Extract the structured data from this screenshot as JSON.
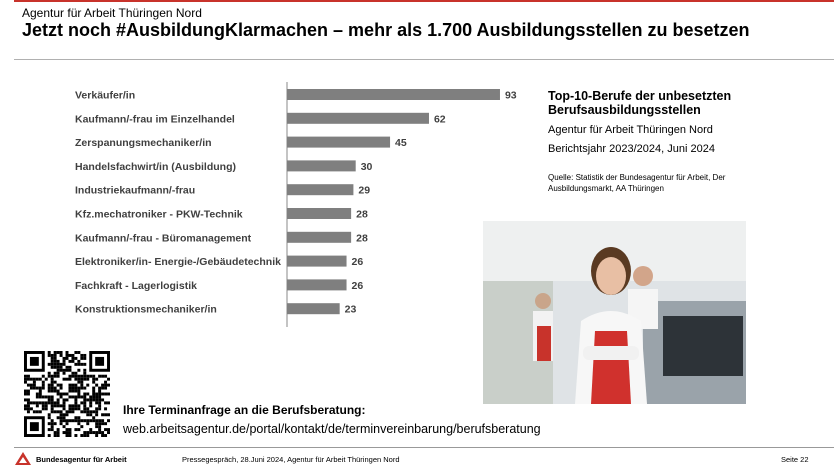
{
  "header": {
    "agency": "Agentur für Arbeit Thüringen Nord",
    "title": "Jetzt noch #AusbildungKlarmachen – mehr als 1.700 Ausbildungsstellen zu besetzen"
  },
  "chart_data": {
    "type": "bar",
    "orientation": "horizontal",
    "categories": [
      "Verkäufer/in",
      "Kaufmann/-frau im Einzelhandel",
      "Zerspanungsmechaniker/in",
      "Handelsfachwirt/in (Ausbildung)",
      "Industriekaufmann/-frau",
      "Kfz.mechatroniker - PKW-Technik",
      "Kaufmann/-frau - Büromanagement",
      "Elektroniker/in- Energie-/Gebäudetechnik",
      "Fachkraft - Lagerlogistik",
      "Konstruktionsmechaniker/in"
    ],
    "values": [
      93,
      62,
      45,
      30,
      29,
      28,
      28,
      26,
      26,
      23
    ],
    "bar_color": "#7f7f7f",
    "grid": false
  },
  "info": {
    "heading": "Top-10-Berufe der unbesetzten Berufsausbildungsstellen",
    "line1": "Agentur für Arbeit Thüringen Nord",
    "line2": "Berichtsjahr 2023/2024, Juni 2024",
    "source": "Quelle: Statistik der Bundesagentur für Arbeit, Der Ausbildungsmarkt, AA Thüringen"
  },
  "cta": {
    "heading": "Ihre Terminanfrage an die Berufsberatung:",
    "url": "web.arbeitsagentur.de/portal/kontakt/de/terminvereinbarung/berufsberatung"
  },
  "footer": {
    "brand": "Bundesagentur für Arbeit",
    "text": "Pressegespräch, 28.Juni 2024, Agentur für Arbeit Thüringen Nord",
    "page": "Seite 22"
  },
  "colors": {
    "accent": "#c8332b",
    "bar": "#7f7f7f"
  }
}
